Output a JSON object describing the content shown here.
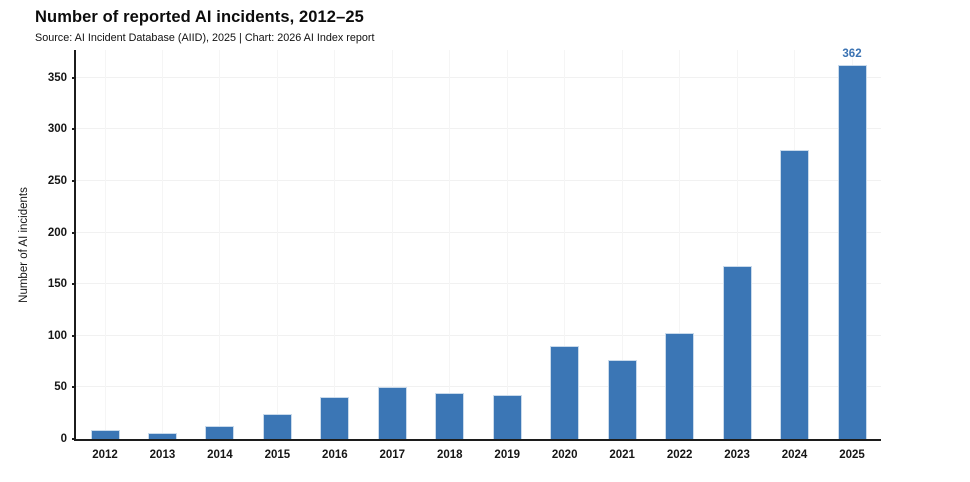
{
  "header": {
    "title": "Number of reported AI incidents, 2012–25",
    "source": "Source: AI Incident Database (AIID), 2025 | Chart: 2026 AI Index report"
  },
  "chart_data": {
    "type": "bar",
    "title": "Number of reported AI incidents, 2012–25",
    "categories": [
      "2012",
      "2013",
      "2014",
      "2015",
      "2016",
      "2017",
      "2018",
      "2019",
      "2020",
      "2021",
      "2022",
      "2023",
      "2024",
      "2025"
    ],
    "values": [
      9,
      6,
      13,
      24,
      41,
      50,
      45,
      43,
      90,
      77,
      103,
      168,
      280,
      362
    ],
    "xlabel": "",
    "ylabel": "Number of AI incidents",
    "yticks": [
      0,
      50,
      100,
      150,
      200,
      250,
      300,
      350
    ],
    "ylim": [
      0,
      377
    ],
    "grid": true,
    "legend_position": "none",
    "annotations": [
      {
        "category": "2025",
        "text": "362"
      }
    ],
    "colors": {
      "bar_fill": "#3b76b5",
      "bar_edge": "#c9daeb",
      "annotation_text": "#3a72b2",
      "axis": "#1c1c1c",
      "grid_h": "#f1f1f1",
      "grid_v": "#f5f5f5"
    }
  }
}
